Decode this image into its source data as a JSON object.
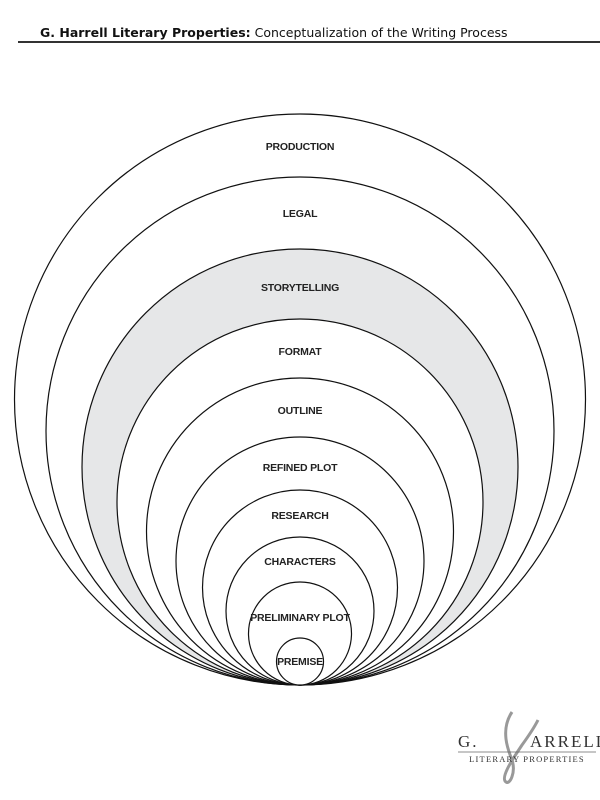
{
  "header": {
    "brand": "G. Harrell Literary Properties:",
    "title": "Conceptualization of the Writing Process"
  },
  "diagram": {
    "layers": [
      {
        "label": "PRODUCTION",
        "fill": "#ffffff"
      },
      {
        "label": "LEGAL",
        "fill": "#ffffff"
      },
      {
        "label": "STORYTELLING",
        "fill": "#e6e7e8"
      },
      {
        "label": "FORMAT",
        "fill": "#ffffff"
      },
      {
        "label": "OUTLINE",
        "fill": "#ffffff"
      },
      {
        "label": "REFINED PLOT",
        "fill": "#ffffff"
      },
      {
        "label": "RESEARCH",
        "fill": "#ffffff"
      },
      {
        "label": "CHARACTERS",
        "fill": "#ffffff"
      },
      {
        "label": "PRELIMINARY PLOT",
        "fill": "#ffffff"
      },
      {
        "label": "PREMISE",
        "fill": "#ffffff"
      }
    ]
  },
  "logo": {
    "line1": "G. HARRELL",
    "line2": "LITERARY PROPERTIES"
  }
}
